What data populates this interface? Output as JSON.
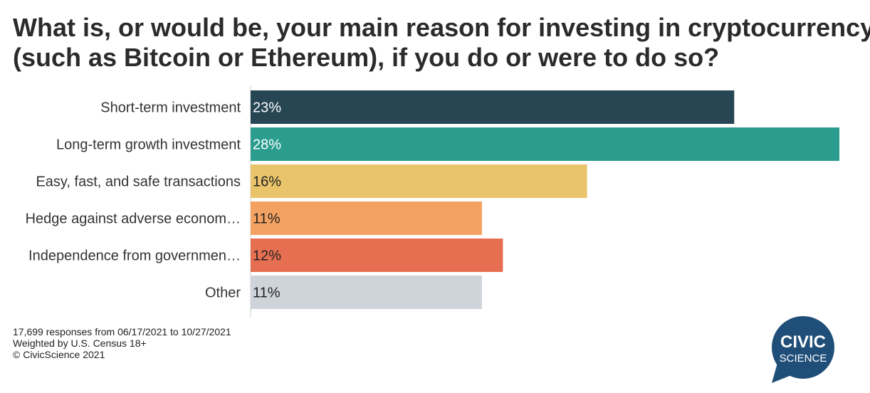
{
  "title_lines": [
    "What is, or would be, your main reason for investing in cryptocurrency",
    "(such as Bitcoin or Ethereum), if you do or were to do so?"
  ],
  "chart_data": {
    "type": "bar",
    "orientation": "horizontal",
    "categories": [
      "Short-term investment",
      "Long-term growth investment",
      "Easy, fast, and safe transactions",
      "Hedge against adverse econom…",
      "Independence from governmen…",
      "Other"
    ],
    "values": [
      23,
      28,
      16,
      11,
      12,
      11
    ],
    "value_labels": [
      "23%",
      "28%",
      "16%",
      "11%",
      "12%",
      "11%"
    ],
    "colors": [
      "#264653",
      "#2a9d8f",
      "#e9c46a",
      "#f4a261",
      "#e76f51",
      "#ced4da"
    ],
    "label_colors": [
      "#ffffff",
      "#ffffff",
      "#222222",
      "#222222",
      "#222222",
      "#222222"
    ],
    "xlim": [
      0,
      28
    ],
    "grid": false,
    "legend": "none"
  },
  "footer": {
    "responses": "17,699 responses from 06/17/2021 to 10/27/2021",
    "weighting": "Weighted by U.S. Census 18+",
    "copyright": "© CivicScience 2021"
  },
  "logo": {
    "line1": "CIVIC",
    "line2": "SCIENCE",
    "color": "#1f4e79"
  }
}
